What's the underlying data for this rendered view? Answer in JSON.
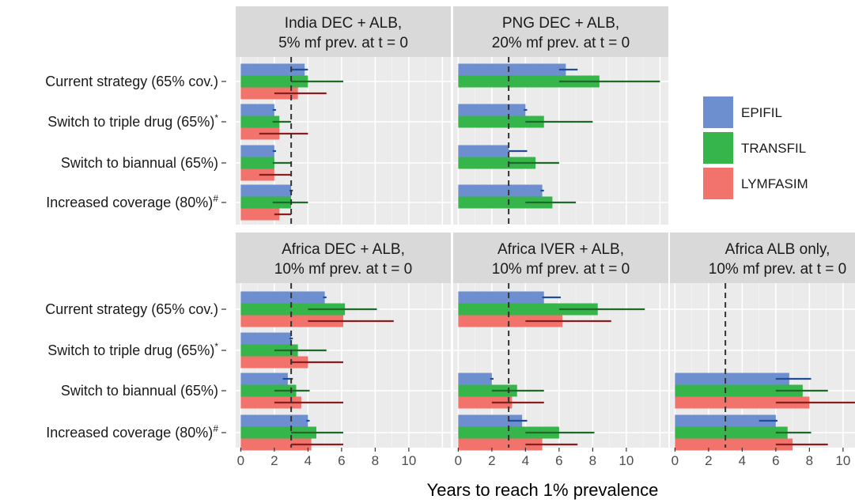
{
  "chart_data": {
    "type": "bar",
    "orientation": "horizontal",
    "xlabel": "Years to reach 1% prevalence",
    "xlim": [
      -0.3,
      12.5
    ],
    "x_ticks": [
      0,
      2,
      4,
      6,
      8,
      10
    ],
    "reference_line": 3,
    "grid": true,
    "legend_position": "right",
    "categories": [
      "Current strategy (65% cov.)",
      "Switch to triple drug (65%)*",
      "Switch to biannual (65%)",
      "Increased coverage (80%)#"
    ],
    "category_labels": [
      {
        "text": "Current strategy (65% cov.)",
        "sup": ""
      },
      {
        "text": "Switch to triple drug (65%)",
        "sup": "*"
      },
      {
        "text": "Switch to biannual (65%)",
        "sup": ""
      },
      {
        "text": "Increased coverage (80%)",
        "sup": "#"
      }
    ],
    "legend": [
      {
        "name": "EPIFIL",
        "color": "#6d8fd0"
      },
      {
        "name": "TRANSFIL",
        "color": "#35b54a"
      },
      {
        "name": "LYMFASIM",
        "color": "#f1736c"
      }
    ],
    "error_colors": {
      "EPIFIL": "#1f4e96",
      "TRANSFIL": "#1d6b26",
      "LYMFASIM": "#8c1d1d"
    },
    "panels": [
      {
        "title_line1": "India DEC + ALB,",
        "title_line2": "5% mf prev. at t = 0",
        "row": 0,
        "col": 0,
        "series": [
          {
            "name": "EPIFIL",
            "values": [
              3.8,
              2.0,
              2.0,
              3.0
            ],
            "err_low": [
              3.0,
              1.9,
              1.9,
              2.9
            ],
            "err_high": [
              4.0,
              2.1,
              2.1,
              3.1
            ]
          },
          {
            "name": "TRANSFIL",
            "values": [
              4.0,
              2.3,
              2.0,
              3.0
            ],
            "err_low": [
              3.0,
              1.9,
              1.9,
              1.9
            ],
            "err_high": [
              6.1,
              3.0,
              3.0,
              4.0
            ]
          },
          {
            "name": "LYMFASIM",
            "values": [
              3.4,
              2.3,
              2.0,
              2.3
            ],
            "err_low": [
              2.0,
              1.1,
              1.1,
              2.0
            ],
            "err_high": [
              5.1,
              4.0,
              3.0,
              3.0
            ]
          }
        ]
      },
      {
        "title_line1": "PNG DEC + ALB,",
        "title_line2": "20% mf prev. at t = 0",
        "row": 0,
        "col": 1,
        "series": [
          {
            "name": "EPIFIL",
            "values": [
              6.4,
              4.0,
              3.0,
              5.0
            ],
            "err_low": [
              6.0,
              3.9,
              3.0,
              4.9
            ],
            "err_high": [
              7.1,
              4.1,
              4.1,
              5.1
            ]
          },
          {
            "name": "TRANSFIL",
            "values": [
              8.4,
              5.1,
              4.6,
              5.6
            ],
            "err_low": [
              6.0,
              4.0,
              3.0,
              4.0
            ],
            "err_high": [
              12.0,
              8.0,
              6.0,
              7.0
            ]
          },
          {
            "name": "LYMFASIM",
            "values": [
              null,
              null,
              null,
              null
            ],
            "err_low": [
              null,
              null,
              null,
              null
            ],
            "err_high": [
              null,
              null,
              null,
              null
            ]
          }
        ]
      },
      {
        "title_line1": "Africa DEC + ALB,",
        "title_line2": "10% mf prev. at t = 0",
        "row": 1,
        "col": 0,
        "series": [
          {
            "name": "EPIFIL",
            "values": [
              5.0,
              3.0,
              2.8,
              4.0
            ],
            "err_low": [
              4.9,
              2.9,
              2.5,
              3.9
            ],
            "err_high": [
              5.1,
              3.1,
              3.1,
              4.1
            ]
          },
          {
            "name": "TRANSFIL",
            "values": [
              6.2,
              3.4,
              3.3,
              4.5
            ],
            "err_low": [
              4.0,
              2.0,
              2.0,
              3.0
            ],
            "err_high": [
              8.1,
              5.1,
              4.1,
              6.1
            ]
          },
          {
            "name": "LYMFASIM",
            "values": [
              6.1,
              4.0,
              3.6,
              4.2
            ],
            "err_low": [
              4.0,
              3.0,
              2.0,
              3.0
            ],
            "err_high": [
              9.1,
              6.1,
              6.1,
              6.1
            ]
          }
        ]
      },
      {
        "title_line1": "Africa IVER + ALB,",
        "title_line2": "10% mf prev. at t = 0",
        "row": 1,
        "col": 1,
        "series": [
          {
            "name": "EPIFIL",
            "values": [
              5.1,
              null,
              2.0,
              3.8
            ],
            "err_low": [
              5.0,
              null,
              1.9,
              3.0
            ],
            "err_high": [
              6.1,
              null,
              2.1,
              4.1
            ]
          },
          {
            "name": "TRANSFIL",
            "values": [
              8.3,
              null,
              3.5,
              6.0
            ],
            "err_low": [
              6.0,
              null,
              2.0,
              4.0
            ],
            "err_high": [
              11.1,
              null,
              5.1,
              8.1
            ]
          },
          {
            "name": "LYMFASIM",
            "values": [
              6.2,
              null,
              3.2,
              5.0
            ],
            "err_low": [
              4.0,
              null,
              2.0,
              4.0
            ],
            "err_high": [
              9.1,
              null,
              5.1,
              7.1
            ]
          }
        ]
      },
      {
        "title_line1": "Africa ALB only,",
        "title_line2": "10% mf prev. at t = 0",
        "row": 1,
        "col": 2,
        "series": [
          {
            "name": "EPIFIL",
            "values": [
              null,
              null,
              6.8,
              6.0
            ],
            "err_low": [
              null,
              null,
              6.0,
              5.0
            ],
            "err_high": [
              null,
              null,
              8.1,
              6.1
            ]
          },
          {
            "name": "TRANSFIL",
            "values": [
              null,
              null,
              7.6,
              6.7
            ],
            "err_low": [
              null,
              null,
              6.0,
              6.0
            ],
            "err_high": [
              null,
              null,
              9.1,
              8.1
            ]
          },
          {
            "name": "LYMFASIM",
            "values": [
              null,
              null,
              8.0,
              7.0
            ],
            "err_low": [
              null,
              null,
              6.0,
              6.0
            ],
            "err_high": [
              null,
              null,
              11.1,
              9.1
            ]
          }
        ]
      }
    ]
  }
}
